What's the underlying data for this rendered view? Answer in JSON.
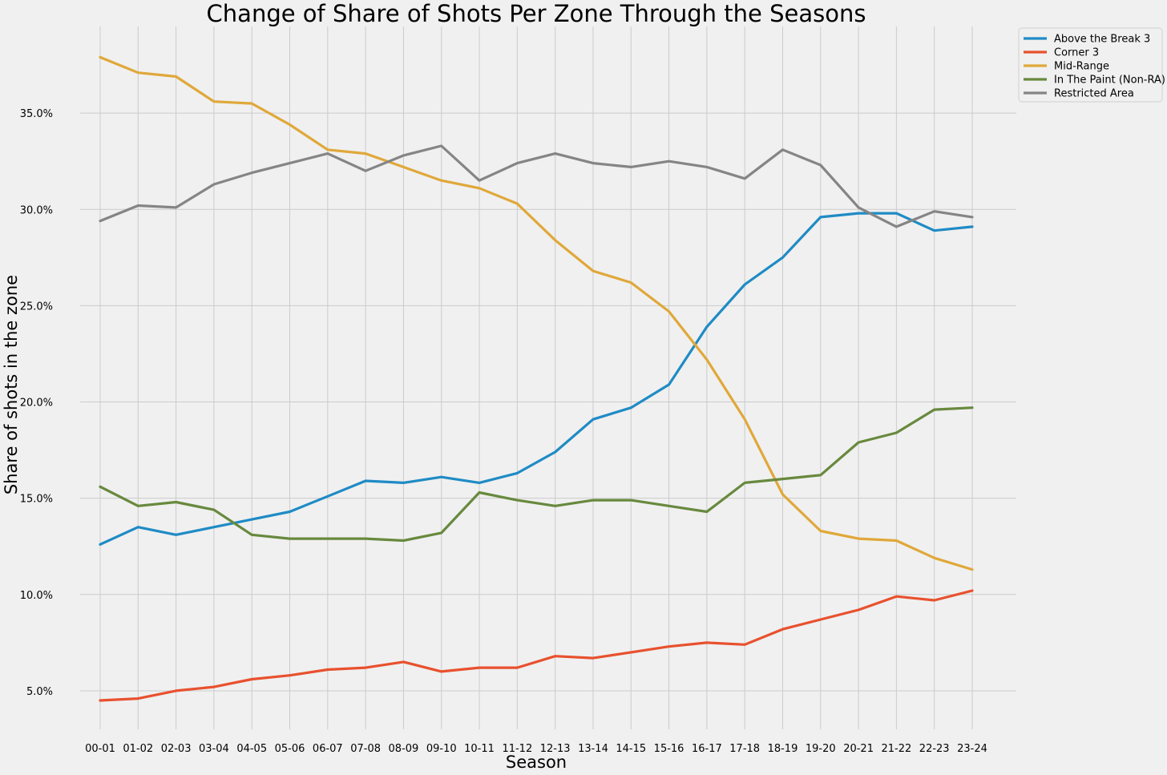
{
  "chart_data": {
    "type": "line",
    "title": "Change of Share of Shots Per Zone Through the Seasons",
    "xlabel": "Season",
    "ylabel": "Share of shots in the zone",
    "categories": [
      "00-01",
      "01-02",
      "02-03",
      "03-04",
      "04-05",
      "05-06",
      "06-07",
      "07-08",
      "08-09",
      "09-10",
      "10-11",
      "11-12",
      "12-13",
      "13-14",
      "14-15",
      "15-16",
      "16-17",
      "17-18",
      "18-19",
      "19-20",
      "20-21",
      "21-22",
      "22-23",
      "23-24"
    ],
    "ylim": [
      3.0,
      39.5
    ],
    "yticks": [
      5.0,
      10.0,
      15.0,
      20.0,
      25.0,
      30.0,
      35.0
    ],
    "ytick_labels": [
      "5.0%",
      "10.0%",
      "15.0%",
      "20.0%",
      "25.0%",
      "30.0%",
      "35.0%"
    ],
    "grid": true,
    "legend_position": "top-right",
    "series": [
      {
        "name": "Above the Break 3",
        "color": "#1f8bc5",
        "values": [
          12.6,
          13.5,
          13.1,
          13.5,
          13.9,
          14.3,
          15.1,
          15.9,
          15.8,
          16.1,
          15.8,
          16.3,
          17.4,
          19.1,
          19.7,
          20.9,
          23.9,
          26.1,
          27.5,
          29.6,
          29.8,
          29.8,
          28.9,
          29.1
        ]
      },
      {
        "name": "Corner 3",
        "color": "#e8512e",
        "values": [
          4.5,
          4.6,
          5.0,
          5.2,
          5.6,
          5.8,
          6.1,
          6.2,
          6.5,
          6.0,
          6.2,
          6.2,
          6.8,
          6.7,
          7.0,
          7.3,
          7.5,
          7.4,
          8.2,
          8.7,
          9.2,
          9.9,
          9.7,
          10.2
        ]
      },
      {
        "name": "Mid-Range",
        "color": "#e0a83a",
        "values": [
          37.9,
          37.1,
          36.9,
          35.6,
          35.5,
          34.4,
          33.1,
          32.9,
          32.2,
          31.5,
          31.1,
          30.3,
          28.4,
          26.8,
          26.2,
          24.7,
          22.2,
          19.1,
          15.2,
          13.3,
          12.9,
          12.8,
          11.9,
          11.3
        ]
      },
      {
        "name": "In The Paint (Non-RA)",
        "color": "#68893e",
        "values": [
          15.6,
          14.6,
          14.8,
          14.4,
          13.1,
          12.9,
          12.9,
          12.9,
          12.8,
          13.2,
          15.3,
          14.9,
          14.6,
          14.9,
          14.9,
          14.6,
          14.3,
          15.8,
          16.0,
          16.2,
          17.9,
          18.4,
          19.6,
          19.7
        ]
      },
      {
        "name": "Restricted Area",
        "color": "#858585",
        "values": [
          29.4,
          30.2,
          30.1,
          31.3,
          31.9,
          32.4,
          32.9,
          32.0,
          32.8,
          33.3,
          31.5,
          32.4,
          32.9,
          32.4,
          32.2,
          32.5,
          32.2,
          31.6,
          33.1,
          32.3,
          30.1,
          29.1,
          29.9,
          29.6
        ]
      }
    ]
  }
}
